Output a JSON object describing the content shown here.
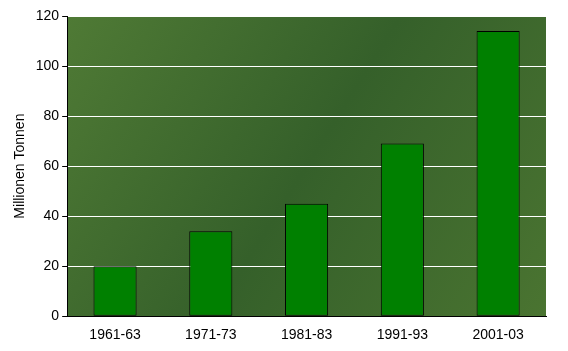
{
  "chart_data": {
    "type": "bar",
    "y_label": "Millionen Tonnen",
    "categories": [
      "1961-63",
      "1971-73",
      "1981-83",
      "1991-93",
      "2001-03"
    ],
    "values": [
      20,
      34,
      45,
      69,
      114
    ],
    "color": "#008000",
    "ylim": [
      0,
      120
    ],
    "yticks": [
      0,
      20,
      40,
      60,
      80,
      100,
      120
    ],
    "grid": true
  }
}
